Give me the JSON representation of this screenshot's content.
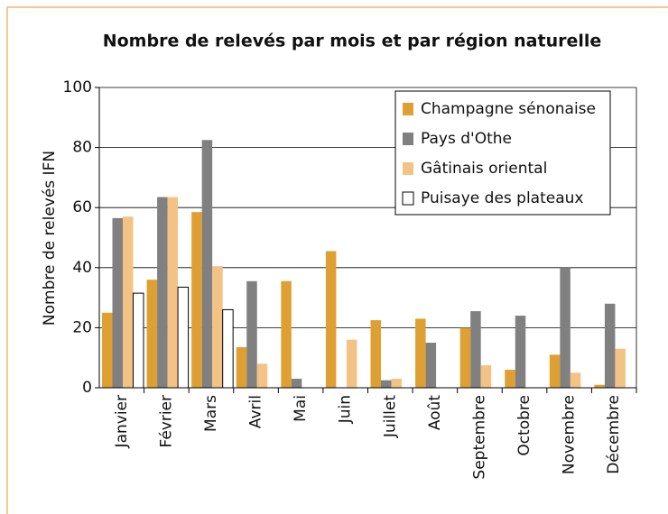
{
  "chart_data": {
    "type": "bar",
    "title": "Nombre de relevés par mois et par région naturelle",
    "y_label": "Nombre de relevés IFN",
    "categories": [
      "Janvier",
      "Février",
      "Mars",
      "Avril",
      "Mai",
      "Juin",
      "Juillet",
      "Août",
      "Septembre",
      "Octobre",
      "Novembre",
      "Décembre"
    ],
    "series": [
      {
        "name": "Champagne sénonaise",
        "color": "#dea032",
        "values": [
          25,
          36,
          58.5,
          13.5,
          35.5,
          45.5,
          22.5,
          23,
          20,
          6,
          11,
          1
        ]
      },
      {
        "name": "Pays d'Othe",
        "color": "#808080",
        "values": [
          56.5,
          63.5,
          82.5,
          35.5,
          3,
          0,
          2.5,
          15,
          25.5,
          24,
          40,
          28
        ]
      },
      {
        "name": "Gâtinais oriental",
        "color": "#f2c384",
        "values": [
          57,
          63.5,
          40.5,
          8,
          0,
          16,
          3,
          0,
          7.5,
          0,
          5,
          13
        ]
      },
      {
        "name": "Puisaye des plateaux",
        "color": "#ffffff",
        "values": [
          31.5,
          33.5,
          26,
          0,
          0,
          0,
          0,
          0,
          0,
          0,
          0,
          0
        ]
      }
    ],
    "ylim": [
      0,
      100
    ],
    "yticks": [
      0,
      20,
      40,
      60,
      80,
      100
    ],
    "grid": true,
    "legend": "upper right"
  }
}
